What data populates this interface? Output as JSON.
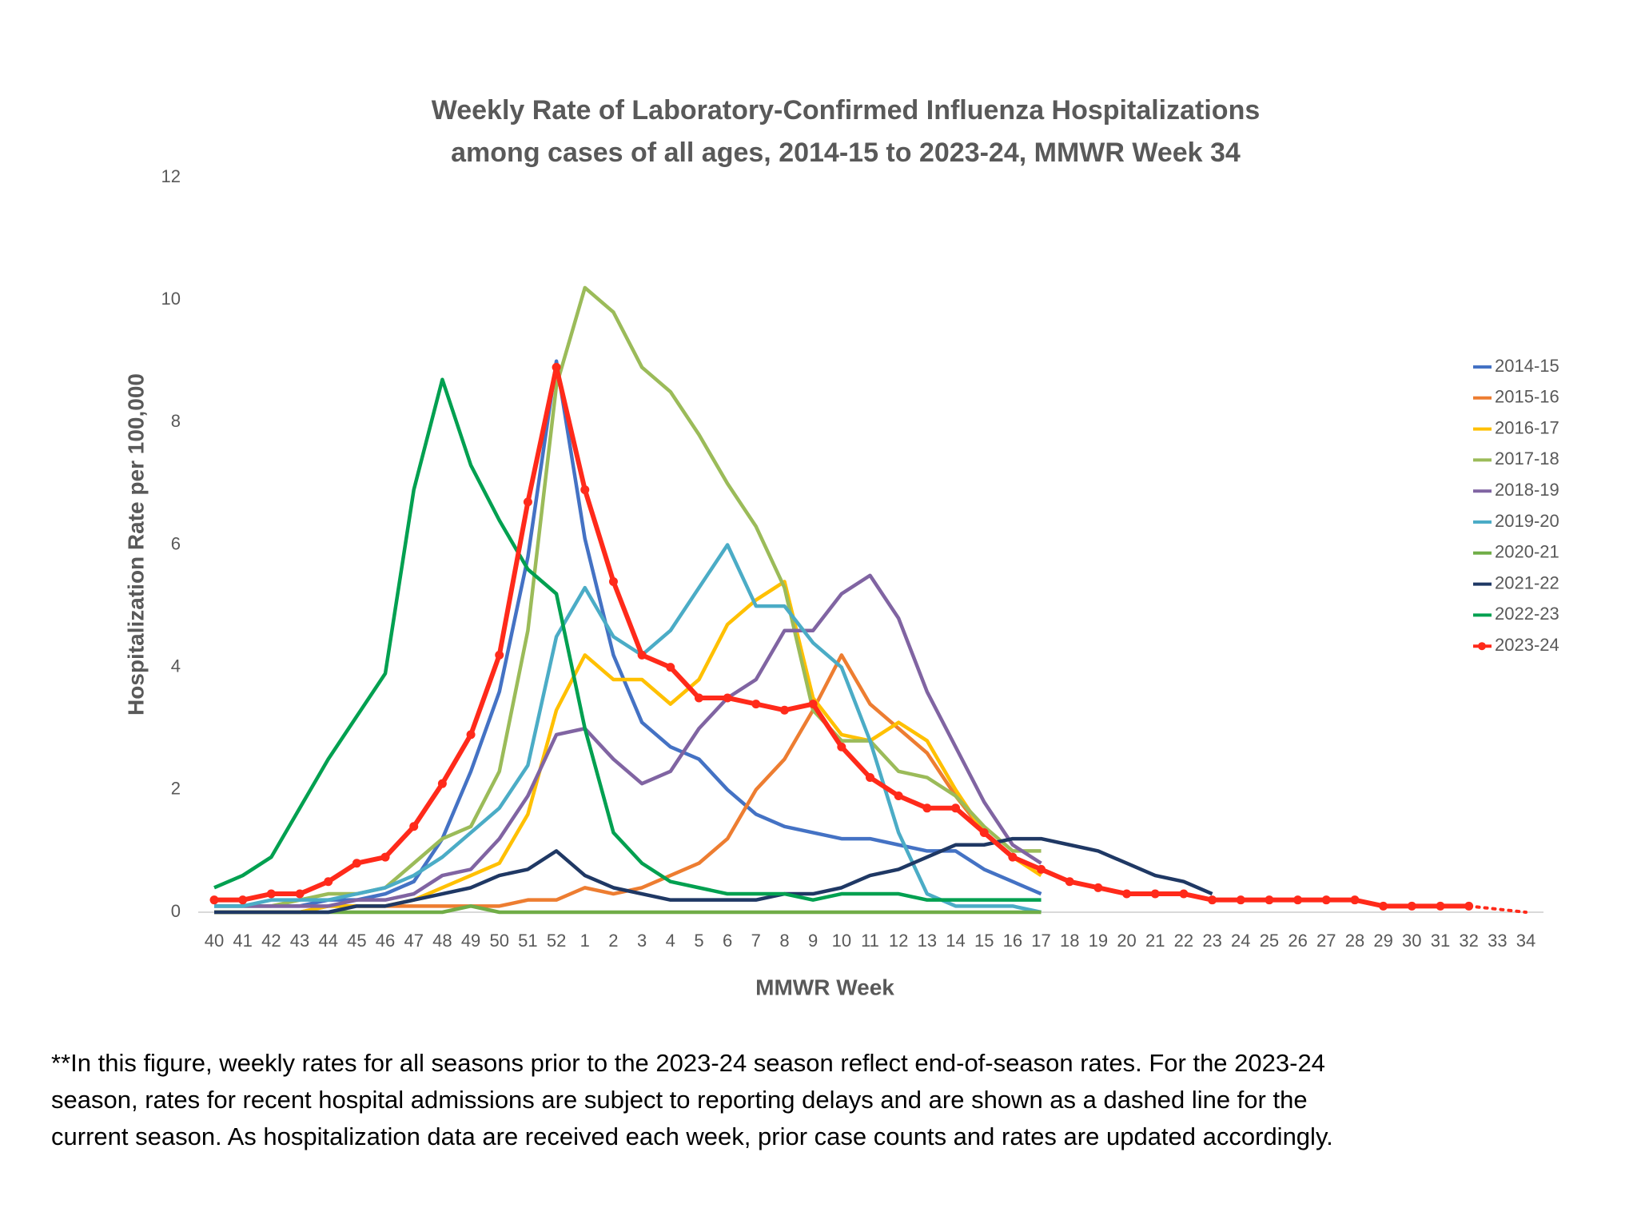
{
  "chart_data": {
    "type": "line",
    "title": [
      "Weekly Rate of Laboratory-Confirmed Influenza Hospitalizations",
      "among cases of all ages, 2014-15 to 2023-24, MMWR Week 34"
    ],
    "x_label": "MMWR Week",
    "y_label": "Hospitalization Rate per 100,000",
    "categories": [
      "40",
      "41",
      "42",
      "43",
      "44",
      "45",
      "46",
      "47",
      "48",
      "49",
      "50",
      "51",
      "52",
      "1",
      "2",
      "3",
      "4",
      "5",
      "6",
      "7",
      "8",
      "9",
      "10",
      "11",
      "12",
      "13",
      "14",
      "15",
      "16",
      "17",
      "18",
      "19",
      "20",
      "21",
      "22",
      "23",
      "24",
      "25",
      "26",
      "27",
      "28",
      "29",
      "30",
      "31",
      "32",
      "33",
      "34"
    ],
    "ylim": [
      0,
      12
    ],
    "yticks": [
      0,
      2,
      4,
      6,
      8,
      10,
      12
    ],
    "grid": false,
    "legend": "right",
    "series": [
      {
        "name": "2014-15",
        "color": "#4472c4",
        "values": [
          0.1,
          0.1,
          0.1,
          0.1,
          0.2,
          0.2,
          0.3,
          0.5,
          1.2,
          2.3,
          3.6,
          5.8,
          9.0,
          6.1,
          4.2,
          3.1,
          2.7,
          2.5,
          2.0,
          1.6,
          1.4,
          1.3,
          1.2,
          1.2,
          1.1,
          1.0,
          1.0,
          0.7,
          0.5,
          0.3,
          null,
          null,
          null,
          null,
          null,
          null,
          null,
          null,
          null,
          null,
          null,
          null,
          null,
          null,
          null,
          null,
          null
        ]
      },
      {
        "name": "2015-16",
        "color": "#ed7d31",
        "values": [
          0.0,
          0.0,
          0.0,
          0.0,
          0.1,
          0.1,
          0.1,
          0.1,
          0.1,
          0.1,
          0.1,
          0.2,
          0.2,
          0.4,
          0.3,
          0.4,
          0.6,
          0.8,
          1.2,
          2.0,
          2.5,
          3.3,
          4.2,
          3.4,
          3.0,
          2.6,
          1.9,
          1.3,
          0.9,
          0.7,
          null,
          null,
          null,
          null,
          null,
          null,
          null,
          null,
          null,
          null,
          null,
          null,
          null,
          null,
          null,
          null,
          null
        ]
      },
      {
        "name": "2016-17",
        "color": "#ffc000",
        "values": [
          0.0,
          0.0,
          0.0,
          0.0,
          0.1,
          0.1,
          0.1,
          0.2,
          0.4,
          0.6,
          0.8,
          1.6,
          3.3,
          4.2,
          3.8,
          3.8,
          3.4,
          3.8,
          4.7,
          5.1,
          5.4,
          3.5,
          2.9,
          2.8,
          3.1,
          2.8,
          2.0,
          1.3,
          0.9,
          0.6,
          null,
          null,
          null,
          null,
          null,
          null,
          null,
          null,
          null,
          null,
          null,
          null,
          null,
          null,
          null,
          null,
          null
        ]
      },
      {
        "name": "2017-18",
        "color": "#9bbb59",
        "values": [
          0.1,
          0.1,
          0.1,
          0.2,
          0.3,
          0.3,
          0.4,
          0.8,
          1.2,
          1.4,
          2.3,
          4.6,
          8.6,
          10.2,
          9.8,
          8.9,
          8.5,
          7.8,
          7.0,
          6.3,
          5.3,
          3.3,
          2.8,
          2.8,
          2.3,
          2.2,
          1.9,
          1.4,
          1.0,
          1.0,
          null,
          null,
          null,
          null,
          null,
          null,
          null,
          null,
          null,
          null,
          null,
          null,
          null,
          null,
          null,
          null,
          null
        ]
      },
      {
        "name": "2018-19",
        "color": "#8064a2",
        "values": [
          0.1,
          0.1,
          0.1,
          0.1,
          0.1,
          0.2,
          0.2,
          0.3,
          0.6,
          0.7,
          1.2,
          1.9,
          2.9,
          3.0,
          2.5,
          2.1,
          2.3,
          3.0,
          3.5,
          3.8,
          4.6,
          4.6,
          5.2,
          5.5,
          4.8,
          3.6,
          2.7,
          1.8,
          1.1,
          0.8,
          null,
          null,
          null,
          null,
          null,
          null,
          null,
          null,
          null,
          null,
          null,
          null,
          null,
          null,
          null,
          null,
          null
        ]
      },
      {
        "name": "2019-20",
        "color": "#4bacc6",
        "values": [
          0.1,
          0.1,
          0.2,
          0.2,
          0.2,
          0.3,
          0.4,
          0.6,
          0.9,
          1.3,
          1.7,
          2.4,
          4.5,
          5.3,
          4.5,
          4.2,
          4.6,
          5.3,
          6.0,
          5.0,
          5.0,
          4.4,
          4.0,
          2.8,
          1.3,
          0.3,
          0.1,
          0.1,
          0.1,
          0.0,
          null,
          null,
          null,
          null,
          null,
          null,
          null,
          null,
          null,
          null,
          null,
          null,
          null,
          null,
          null,
          null,
          null
        ]
      },
      {
        "name": "2020-21",
        "color": "#70ad47",
        "values": [
          0.0,
          0.0,
          0.0,
          0.0,
          0.0,
          0.0,
          0.0,
          0.0,
          0.0,
          0.1,
          0.0,
          0.0,
          0.0,
          0.0,
          0.0,
          0.0,
          0.0,
          0.0,
          0.0,
          0.0,
          0.0,
          0.0,
          0.0,
          0.0,
          0.0,
          0.0,
          0.0,
          0.0,
          0.0,
          0.0,
          null,
          null,
          null,
          null,
          null,
          null,
          null,
          null,
          null,
          null,
          null,
          null,
          null,
          null,
          null,
          null,
          null
        ]
      },
      {
        "name": "2021-22",
        "color": "#1f3864",
        "values": [
          0.0,
          0.0,
          0.0,
          0.0,
          0.0,
          0.1,
          0.1,
          0.2,
          0.3,
          0.4,
          0.6,
          0.7,
          1.0,
          0.6,
          0.4,
          0.3,
          0.2,
          0.2,
          0.2,
          0.2,
          0.3,
          0.3,
          0.4,
          0.6,
          0.7,
          0.9,
          1.1,
          1.1,
          1.2,
          1.2,
          1.1,
          1.0,
          0.8,
          0.6,
          0.5,
          0.3,
          null,
          null,
          null,
          null,
          null,
          null,
          null,
          null,
          null,
          null,
          null
        ]
      },
      {
        "name": "2022-23",
        "color": "#00a050",
        "values": [
          0.4,
          0.6,
          0.9,
          1.7,
          2.5,
          3.2,
          3.9,
          6.9,
          8.7,
          7.3,
          6.4,
          5.6,
          5.2,
          3.0,
          1.3,
          0.8,
          0.5,
          0.4,
          0.3,
          0.3,
          0.3,
          0.2,
          0.3,
          0.3,
          0.3,
          0.2,
          0.2,
          0.2,
          0.2,
          0.2,
          null,
          null,
          null,
          null,
          null,
          null,
          null,
          null,
          null,
          null,
          null,
          null,
          null,
          null,
          null,
          null,
          null
        ]
      },
      {
        "name": "2023-24",
        "color": "#ff2a1a",
        "markers": true,
        "dashed_from": "32",
        "values": [
          0.2,
          0.2,
          0.3,
          0.3,
          0.5,
          0.8,
          0.9,
          1.4,
          2.1,
          2.9,
          4.2,
          6.7,
          8.9,
          6.9,
          5.4,
          4.2,
          4.0,
          3.5,
          3.5,
          3.4,
          3.3,
          3.4,
          2.7,
          2.2,
          1.9,
          1.7,
          1.7,
          1.3,
          0.9,
          0.7,
          0.5,
          0.4,
          0.3,
          0.3,
          0.3,
          0.2,
          0.2,
          0.2,
          0.2,
          0.2,
          0.2,
          0.1,
          0.1,
          0.1,
          0.1,
          0.05,
          0.0
        ]
      }
    ]
  },
  "note": [
    "**In this figure, weekly rates for all seasons prior to the 2023-24 season reflect end-of-season rates. For the 2023-24",
    "season, rates for recent hospital admissions are subject to reporting delays and are shown as a dashed line for the",
    "current season. As hospitalization data are received each week, prior case counts and rates are updated accordingly."
  ]
}
